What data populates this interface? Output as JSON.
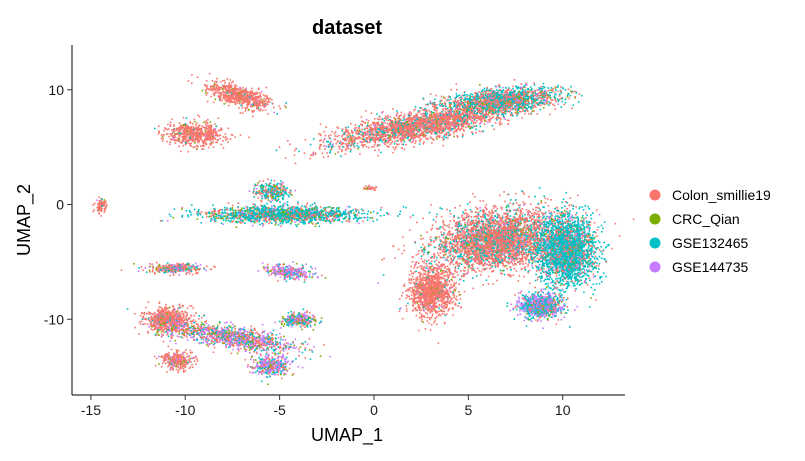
{
  "chart_data": {
    "type": "scatter",
    "title": "dataset",
    "xlabel": "UMAP_1",
    "ylabel": "UMAP_2",
    "xlim": [
      -16,
      13.3
    ],
    "ylim": [
      -16.6,
      13.9
    ],
    "xticks": [
      -15,
      -10,
      -5,
      0,
      5,
      10
    ],
    "yticks": [
      10,
      0,
      -10
    ],
    "grid": false,
    "legend_position": "right",
    "series": [
      {
        "name": "Colon_smillie19",
        "color": "#F8766D"
      },
      {
        "name": "CRC_Qian",
        "color": "#7CAE00"
      },
      {
        "name": "GSE132465",
        "color": "#00BFC4"
      },
      {
        "name": "GSE144735",
        "color": "#C77CFF"
      }
    ],
    "clusters": [
      {
        "x": 2.5,
        "y": 7.0,
        "rx": 5.0,
        "ry": 1.2,
        "n": 2600,
        "mix": [
          0.78,
          0.04,
          0.14,
          0.04
        ],
        "rot": 18
      },
      {
        "x": 6.8,
        "y": 9.2,
        "rx": 3.0,
        "ry": 1.0,
        "n": 1500,
        "mix": [
          0.45,
          0.08,
          0.42,
          0.05
        ],
        "rot": 8
      },
      {
        "x": -7.2,
        "y": 9.5,
        "rx": 1.8,
        "ry": 0.8,
        "n": 700,
        "mix": [
          0.9,
          0.05,
          0.03,
          0.02
        ],
        "rot": -30
      },
      {
        "x": -9.5,
        "y": 6.2,
        "rx": 1.5,
        "ry": 1.0,
        "n": 600,
        "mix": [
          0.9,
          0.05,
          0.03,
          0.02
        ],
        "rot": 0
      },
      {
        "x": -4.8,
        "y": -0.8,
        "rx": 4.0,
        "ry": 0.7,
        "n": 1600,
        "mix": [
          0.25,
          0.1,
          0.6,
          0.05
        ],
        "rot": 0
      },
      {
        "x": -5.5,
        "y": 1.2,
        "rx": 0.9,
        "ry": 0.8,
        "n": 300,
        "mix": [
          0.35,
          0.15,
          0.45,
          0.05
        ],
        "rot": 0
      },
      {
        "x": -14.5,
        "y": 0.0,
        "rx": 0.3,
        "ry": 0.6,
        "n": 80,
        "mix": [
          0.9,
          0.03,
          0.05,
          0.02
        ],
        "rot": 0
      },
      {
        "x": -0.3,
        "y": 1.5,
        "rx": 0.4,
        "ry": 0.2,
        "n": 30,
        "mix": [
          0.9,
          0.05,
          0.03,
          0.02
        ],
        "rot": 0
      },
      {
        "x": -10.5,
        "y": -5.5,
        "rx": 1.6,
        "ry": 0.4,
        "n": 300,
        "mix": [
          0.5,
          0.1,
          0.2,
          0.2
        ],
        "rot": 0
      },
      {
        "x": -4.5,
        "y": -5.8,
        "rx": 1.3,
        "ry": 0.6,
        "n": 300,
        "mix": [
          0.25,
          0.05,
          0.2,
          0.5
        ],
        "rot": -10
      },
      {
        "x": -11.0,
        "y": -10.0,
        "rx": 1.2,
        "ry": 1.1,
        "n": 700,
        "mix": [
          0.85,
          0.05,
          0.05,
          0.05
        ],
        "rot": 0
      },
      {
        "x": -10.5,
        "y": -13.5,
        "rx": 0.8,
        "ry": 0.8,
        "n": 300,
        "mix": [
          0.85,
          0.05,
          0.05,
          0.05
        ],
        "rot": 0
      },
      {
        "x": -7.5,
        "y": -11.5,
        "rx": 3.5,
        "ry": 0.9,
        "n": 1100,
        "mix": [
          0.35,
          0.12,
          0.2,
          0.33
        ],
        "rot": -15
      },
      {
        "x": -5.5,
        "y": -14.0,
        "rx": 1.0,
        "ry": 0.9,
        "n": 400,
        "mix": [
          0.2,
          0.1,
          0.2,
          0.5
        ],
        "rot": 0
      },
      {
        "x": -4.0,
        "y": -10.0,
        "rx": 0.9,
        "ry": 0.6,
        "n": 300,
        "mix": [
          0.3,
          0.15,
          0.25,
          0.3
        ],
        "rot": 0
      },
      {
        "x": 6.5,
        "y": -3.0,
        "rx": 3.5,
        "ry": 2.5,
        "n": 3500,
        "mix": [
          0.72,
          0.03,
          0.22,
          0.03
        ],
        "rot": 20
      },
      {
        "x": 3.0,
        "y": -7.5,
        "rx": 1.2,
        "ry": 2.2,
        "n": 1200,
        "mix": [
          0.92,
          0.02,
          0.04,
          0.02
        ],
        "rot": 0
      },
      {
        "x": 10.2,
        "y": -4.0,
        "rx": 1.5,
        "ry": 3.0,
        "n": 2400,
        "mix": [
          0.2,
          0.03,
          0.72,
          0.05
        ],
        "rot": 0
      },
      {
        "x": 8.8,
        "y": -8.8,
        "rx": 1.2,
        "ry": 1.1,
        "n": 800,
        "mix": [
          0.15,
          0.05,
          0.4,
          0.4
        ],
        "rot": 0
      }
    ]
  }
}
